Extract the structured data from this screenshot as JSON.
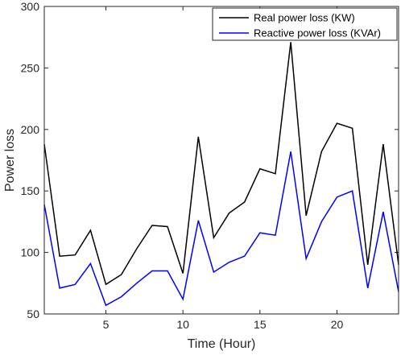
{
  "chart_data": {
    "type": "line",
    "title": "",
    "xlabel": "Time (Hour)",
    "ylabel": "Power loss",
    "xlim": [
      1,
      24
    ],
    "ylim": [
      50,
      300
    ],
    "xticks": [
      5,
      10,
      15,
      20
    ],
    "yticks": [
      50,
      100,
      150,
      200,
      250,
      300
    ],
    "grid": false,
    "legend_position": "top-right",
    "x": [
      1,
      2,
      3,
      4,
      5,
      6,
      7,
      8,
      9,
      10,
      11,
      12,
      13,
      14,
      15,
      16,
      17,
      18,
      19,
      20,
      21,
      22,
      23,
      24
    ],
    "series": [
      {
        "name": "Real power loss (KW)",
        "color": "#000000",
        "values": [
          188,
          97,
          98,
          118,
          74,
          82,
          103,
          122,
          121,
          83,
          194,
          112,
          132,
          141,
          168,
          164,
          271,
          130,
          182,
          205,
          201,
          90,
          188,
          90
        ]
      },
      {
        "name": "Reactive power loss (KVAr)",
        "color": "#0000ff",
        "values": [
          139,
          71,
          74,
          91,
          57,
          64,
          75,
          85,
          85,
          62,
          126,
          84,
          92,
          97,
          116,
          114,
          182,
          95,
          125,
          145,
          150,
          71,
          133,
          68
        ]
      }
    ]
  }
}
